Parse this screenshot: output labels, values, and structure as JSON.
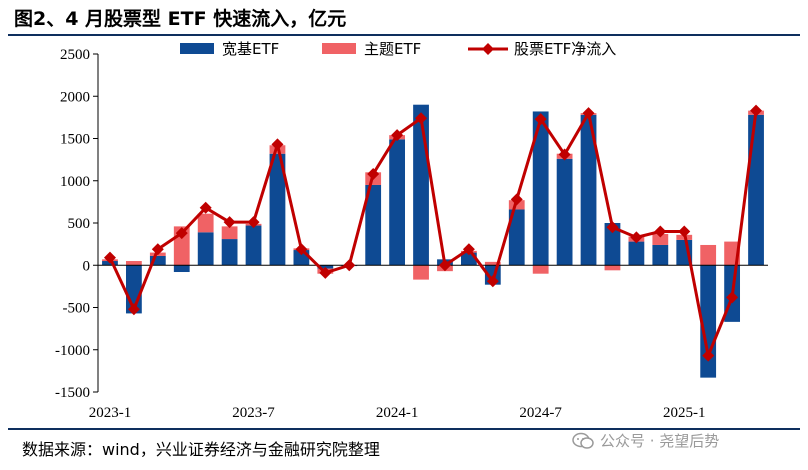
{
  "title": "图2、4 月股票型 ETF 快速流入，亿元",
  "source": "数据来源：wind，兴业证券经济与金融研究院整理",
  "watermark": "公众号 · 尧望后势",
  "colors": {
    "broad": "#0e4a93",
    "theme": "#f06265",
    "net": "#c00000",
    "rule": "#0e2f5e"
  },
  "chart_data": {
    "type": "bar",
    "categories": [
      "2023-1",
      "2023-2",
      "2023-3",
      "2023-4",
      "2023-5",
      "2023-6",
      "2023-7",
      "2023-8",
      "2023-9",
      "2023-10",
      "2023-11",
      "2023-12",
      "2024-1",
      "2024-2",
      "2024-3",
      "2024-4",
      "2024-5",
      "2024-6",
      "2024-7",
      "2024-8",
      "2024-9",
      "2024-10",
      "2024-11",
      "2024-12",
      "2025-1",
      "2025-2",
      "2025-3",
      "2025-4"
    ],
    "x_tick_labels": [
      "2023-1",
      "2023-7",
      "2024-1",
      "2024-7",
      "2025-1"
    ],
    "x_tick_indices": [
      0,
      6,
      12,
      18,
      24
    ],
    "ylim": [
      -1500,
      2500
    ],
    "yticks": [
      -1500,
      -1000,
      -500,
      0,
      500,
      1000,
      1500,
      2000,
      2500
    ],
    "legend_position": "top",
    "series": [
      {
        "name": "宽基ETF",
        "type": "bar-stacked",
        "values": [
          50,
          -570,
          110,
          -80,
          390,
          310,
          470,
          1320,
          180,
          -40,
          -10,
          950,
          1490,
          1900,
          70,
          150,
          -230,
          660,
          1820,
          1260,
          1780,
          500,
          280,
          240,
          300,
          -1330,
          -670,
          1780
        ]
      },
      {
        "name": "主题ETF",
        "type": "bar-stacked",
        "values": [
          20,
          50,
          40,
          460,
          220,
          150,
          20,
          100,
          20,
          -60,
          0,
          150,
          50,
          -170,
          -70,
          20,
          40,
          110,
          -100,
          60,
          20,
          -60,
          60,
          130,
          60,
          240,
          280,
          50
        ]
      },
      {
        "name": "股票ETF净流入",
        "type": "line",
        "values": [
          90,
          -520,
          190,
          380,
          680,
          510,
          510,
          1430,
          190,
          -90,
          0,
          1080,
          1540,
          1740,
          0,
          190,
          -190,
          780,
          1730,
          1310,
          1800,
          450,
          330,
          400,
          400,
          -1070,
          -380,
          1830
        ]
      }
    ]
  }
}
